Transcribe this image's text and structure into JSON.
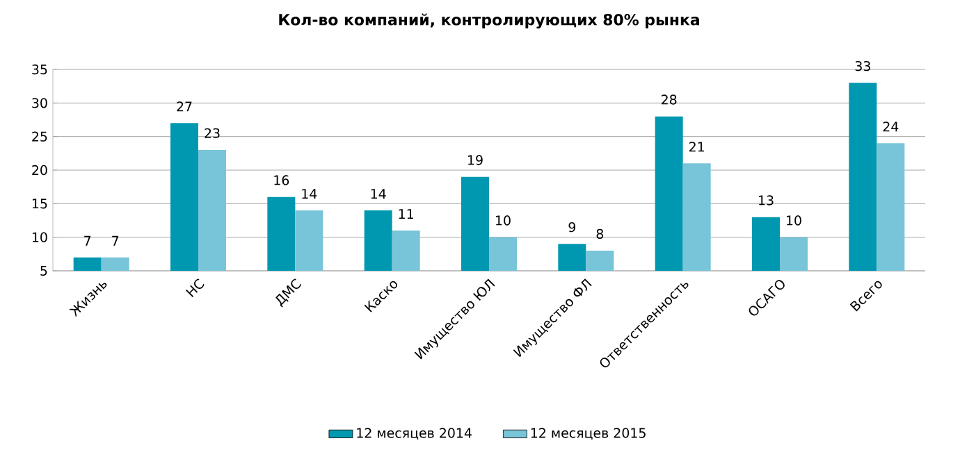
{
  "chart_data": {
    "type": "bar",
    "title": "Кол-во компаний, контролирующих 80% рынка",
    "categories": [
      "Жизнь",
      "НС",
      "ДМС",
      "Каско",
      "Имущество ЮЛ",
      "Имущество ФЛ",
      "Ответственность",
      "ОСАГО",
      "Всего"
    ],
    "series": [
      {
        "name": "12 месяцев 2014",
        "color": "#0098b0",
        "values": [
          7,
          27,
          16,
          14,
          19,
          9,
          28,
          13,
          33
        ]
      },
      {
        "name": "12 месяцев 2015",
        "color": "#78c4d8",
        "values": [
          7,
          23,
          14,
          11,
          10,
          8,
          21,
          10,
          24
        ]
      }
    ],
    "ylim": [
      5,
      35
    ],
    "yticks": [
      5,
      10,
      15,
      20,
      25,
      30,
      35
    ],
    "grid": "y",
    "legend": "bottom",
    "data_labels": true
  }
}
